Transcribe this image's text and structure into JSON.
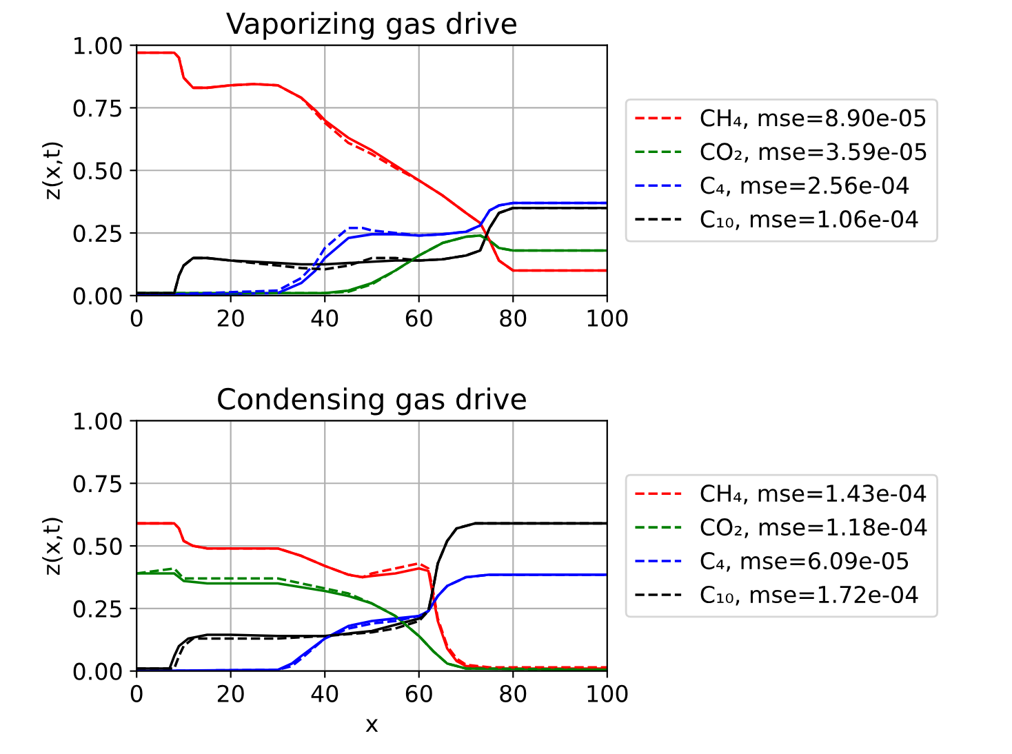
{
  "chart_data": [
    {
      "type": "line",
      "title": "Vaporizing gas drive",
      "ylabel": "z(x,t)",
      "xlim": [
        0,
        100
      ],
      "ylim": [
        0,
        1
      ],
      "xticks": [
        0,
        20,
        40,
        60,
        80,
        100
      ],
      "yticks": [
        {
          "value": 0,
          "label": "0.00"
        },
        {
          "value": 0.25,
          "label": "0.25"
        },
        {
          "value": 0.5,
          "label": "0.50"
        },
        {
          "value": 0.75,
          "label": "0.75"
        },
        {
          "value": 1,
          "label": "1.00"
        }
      ],
      "grid": true,
      "legend": "right",
      "series": [
        {
          "color": "#ff0000",
          "line_style": "solid",
          "x": [
            0,
            8,
            9,
            10,
            12,
            15,
            20,
            25,
            30,
            35,
            38,
            40,
            45,
            50,
            55,
            60,
            65,
            70,
            73,
            75,
            77,
            80,
            90,
            100
          ],
          "values": [
            0.97,
            0.97,
            0.95,
            0.87,
            0.83,
            0.83,
            0.84,
            0.845,
            0.84,
            0.79,
            0.74,
            0.7,
            0.63,
            0.58,
            0.52,
            0.46,
            0.4,
            0.33,
            0.29,
            0.22,
            0.14,
            0.1,
            0.1,
            0.1
          ]
        },
        {
          "color": "#008000",
          "line_style": "solid",
          "x": [
            0,
            35,
            40,
            45,
            50,
            55,
            60,
            65,
            70,
            73,
            75,
            77,
            80,
            90,
            100
          ],
          "values": [
            0.01,
            0.01,
            0.01,
            0.02,
            0.05,
            0.1,
            0.16,
            0.21,
            0.235,
            0.24,
            0.22,
            0.19,
            0.18,
            0.18,
            0.18
          ]
        },
        {
          "color": "#0000ff",
          "line_style": "solid",
          "x": [
            0,
            30,
            35,
            38,
            40,
            45,
            50,
            55,
            60,
            65,
            70,
            73,
            75,
            77,
            80,
            100
          ],
          "values": [
            0.0,
            0.01,
            0.05,
            0.1,
            0.15,
            0.23,
            0.245,
            0.245,
            0.24,
            0.245,
            0.255,
            0.28,
            0.34,
            0.36,
            0.37,
            0.37
          ]
        },
        {
          "color": "#000000",
          "line_style": "solid",
          "x": [
            0,
            8,
            9,
            10,
            12,
            15,
            20,
            25,
            30,
            35,
            40,
            45,
            50,
            55,
            60,
            65,
            70,
            73,
            75,
            77,
            80,
            100
          ],
          "values": [
            0.01,
            0.01,
            0.08,
            0.12,
            0.15,
            0.15,
            0.14,
            0.135,
            0.13,
            0.125,
            0.125,
            0.13,
            0.135,
            0.14,
            0.14,
            0.145,
            0.16,
            0.18,
            0.27,
            0.33,
            0.35,
            0.35
          ]
        },
        {
          "name": "CH₄, mse=8.90e-05",
          "color": "#ff0000",
          "line_style": "dashed",
          "x": [
            0,
            8,
            9,
            10,
            12,
            15,
            20,
            25,
            30,
            35,
            38,
            40,
            45,
            50,
            55,
            60,
            65,
            70,
            73,
            75,
            77,
            80,
            90,
            100
          ],
          "values": [
            0.97,
            0.97,
            0.95,
            0.87,
            0.83,
            0.83,
            0.84,
            0.845,
            0.84,
            0.79,
            0.73,
            0.69,
            0.61,
            0.565,
            0.51,
            0.46,
            0.4,
            0.33,
            0.29,
            0.22,
            0.14,
            0.1,
            0.1,
            0.1
          ]
        },
        {
          "name": "CO₂, mse=3.59e-05",
          "color": "#008000",
          "line_style": "dashed",
          "x": [
            0,
            35,
            40,
            45,
            50,
            55,
            60,
            65,
            70,
            73,
            75,
            77,
            80,
            90,
            100
          ],
          "values": [
            0.01,
            0.01,
            0.01,
            0.015,
            0.045,
            0.1,
            0.16,
            0.21,
            0.235,
            0.24,
            0.22,
            0.19,
            0.18,
            0.18,
            0.18
          ]
        },
        {
          "name": "C₄, mse=2.56e-04",
          "color": "#0000ff",
          "line_style": "dashed",
          "x": [
            0,
            30,
            35,
            38,
            40,
            45,
            48,
            50,
            55,
            60,
            65,
            70,
            73,
            75,
            77,
            80,
            100
          ],
          "values": [
            0.0,
            0.02,
            0.07,
            0.13,
            0.19,
            0.27,
            0.27,
            0.26,
            0.25,
            0.24,
            0.245,
            0.255,
            0.28,
            0.34,
            0.36,
            0.37,
            0.37
          ]
        },
        {
          "name": "C₁₀, mse=1.06e-04",
          "color": "#000000",
          "line_style": "dashed",
          "x": [
            0,
            8,
            9,
            10,
            12,
            15,
            20,
            25,
            30,
            35,
            40,
            45,
            50,
            55,
            60,
            65,
            70,
            73,
            75,
            77,
            80,
            100
          ],
          "values": [
            0.01,
            0.01,
            0.08,
            0.12,
            0.15,
            0.15,
            0.14,
            0.13,
            0.12,
            0.11,
            0.105,
            0.12,
            0.15,
            0.15,
            0.14,
            0.145,
            0.16,
            0.18,
            0.27,
            0.33,
            0.35,
            0.35
          ]
        }
      ]
    },
    {
      "type": "line",
      "title": "Condensing gas drive",
      "xlabel": "x",
      "ylabel": "z(x,t)",
      "xlim": [
        0,
        100
      ],
      "ylim": [
        0,
        1
      ],
      "xticks": [
        0,
        20,
        40,
        60,
        80,
        100
      ],
      "yticks": [
        {
          "value": 0,
          "label": "0.00"
        },
        {
          "value": 0.25,
          "label": "0.25"
        },
        {
          "value": 0.5,
          "label": "0.50"
        },
        {
          "value": 0.75,
          "label": "0.75"
        },
        {
          "value": 1,
          "label": "1.00"
        }
      ],
      "grid": true,
      "legend": "right",
      "series": [
        {
          "color": "#ff0000",
          "line_style": "solid",
          "x": [
            0,
            8,
            9,
            10,
            12,
            15,
            20,
            30,
            35,
            40,
            45,
            48,
            50,
            55,
            60,
            62,
            63,
            64,
            66,
            68,
            70,
            75,
            100
          ],
          "values": [
            0.59,
            0.59,
            0.57,
            0.52,
            0.5,
            0.49,
            0.49,
            0.49,
            0.46,
            0.42,
            0.385,
            0.375,
            0.38,
            0.39,
            0.41,
            0.4,
            0.3,
            0.2,
            0.09,
            0.04,
            0.02,
            0.01,
            0.01
          ]
        },
        {
          "color": "#008000",
          "line_style": "solid",
          "x": [
            0,
            8,
            10,
            15,
            20,
            30,
            40,
            45,
            50,
            55,
            60,
            63,
            66,
            70,
            100
          ],
          "values": [
            0.39,
            0.39,
            0.36,
            0.35,
            0.35,
            0.35,
            0.32,
            0.3,
            0.27,
            0.22,
            0.14,
            0.08,
            0.03,
            0.01,
            0.005
          ]
        },
        {
          "color": "#0000ff",
          "line_style": "solid",
          "x": [
            0,
            30,
            33,
            35,
            40,
            45,
            50,
            55,
            60,
            62,
            64,
            66,
            70,
            75,
            100
          ],
          "values": [
            0.0,
            0.005,
            0.03,
            0.06,
            0.13,
            0.18,
            0.2,
            0.21,
            0.22,
            0.24,
            0.3,
            0.34,
            0.375,
            0.385,
            0.385
          ]
        },
        {
          "color": "#000000",
          "line_style": "solid",
          "x": [
            0,
            7,
            8,
            9,
            11,
            15,
            20,
            30,
            40,
            45,
            50,
            55,
            60,
            62,
            63,
            64,
            66,
            68,
            72,
            100
          ],
          "values": [
            0.01,
            0.01,
            0.06,
            0.1,
            0.13,
            0.145,
            0.145,
            0.14,
            0.14,
            0.15,
            0.16,
            0.185,
            0.21,
            0.24,
            0.33,
            0.43,
            0.52,
            0.57,
            0.59,
            0.59
          ]
        },
        {
          "name": "CH₄, mse=1.43e-04",
          "color": "#ff0000",
          "line_style": "dashed",
          "x": [
            0,
            8,
            9,
            10,
            12,
            15,
            20,
            30,
            35,
            40,
            45,
            48,
            50,
            55,
            60,
            62,
            63,
            64,
            66,
            68,
            70,
            75,
            100
          ],
          "values": [
            0.59,
            0.59,
            0.57,
            0.52,
            0.5,
            0.49,
            0.49,
            0.49,
            0.46,
            0.42,
            0.385,
            0.375,
            0.39,
            0.41,
            0.43,
            0.41,
            0.32,
            0.21,
            0.1,
            0.05,
            0.025,
            0.015,
            0.015
          ]
        },
        {
          "name": "CO₂, mse=1.18e-04",
          "color": "#008000",
          "line_style": "dashed",
          "x": [
            0,
            8,
            10,
            15,
            20,
            30,
            40,
            45,
            50,
            55,
            60,
            63,
            66,
            70,
            100
          ],
          "values": [
            0.39,
            0.41,
            0.37,
            0.37,
            0.37,
            0.37,
            0.33,
            0.31,
            0.27,
            0.22,
            0.14,
            0.08,
            0.03,
            0.01,
            0.005
          ]
        },
        {
          "name": "C₄, mse=6.09e-05",
          "color": "#0000ff",
          "line_style": "dashed",
          "x": [
            0,
            30,
            33,
            35,
            40,
            45,
            50,
            55,
            60,
            62,
            64,
            66,
            70,
            75,
            100
          ],
          "values": [
            0.0,
            0.005,
            0.02,
            0.05,
            0.13,
            0.17,
            0.19,
            0.2,
            0.22,
            0.24,
            0.3,
            0.34,
            0.375,
            0.385,
            0.385
          ]
        },
        {
          "name": "C₁₀, mse=1.72e-04",
          "color": "#000000",
          "line_style": "dashed",
          "x": [
            0,
            8,
            9,
            10,
            12,
            20,
            30,
            40,
            50,
            55,
            60,
            62,
            63,
            64,
            66,
            68,
            72,
            100
          ],
          "values": [
            0.01,
            0.01,
            0.06,
            0.1,
            0.13,
            0.13,
            0.13,
            0.14,
            0.155,
            0.17,
            0.2,
            0.24,
            0.33,
            0.43,
            0.52,
            0.57,
            0.59,
            0.59
          ]
        }
      ]
    }
  ]
}
